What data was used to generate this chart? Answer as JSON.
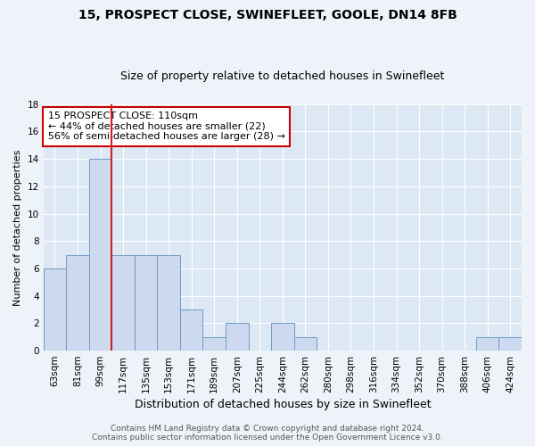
{
  "title": "15, PROSPECT CLOSE, SWINEFLEET, GOOLE, DN14 8FB",
  "subtitle": "Size of property relative to detached houses in Swinefleet",
  "xlabel": "Distribution of detached houses by size in Swinefleet",
  "ylabel": "Number of detached properties",
  "categories": [
    "63sqm",
    "81sqm",
    "99sqm",
    "117sqm",
    "135sqm",
    "153sqm",
    "171sqm",
    "189sqm",
    "207sqm",
    "225sqm",
    "244sqm",
    "262sqm",
    "280sqm",
    "298sqm",
    "316sqm",
    "334sqm",
    "352sqm",
    "370sqm",
    "388sqm",
    "406sqm",
    "424sqm"
  ],
  "values": [
    6,
    7,
    14,
    7,
    7,
    7,
    3,
    1,
    2,
    0,
    2,
    1,
    0,
    0,
    0,
    0,
    0,
    0,
    0,
    1,
    1
  ],
  "bar_color": "#ccd9ee",
  "bar_edge_color": "#7099c8",
  "vline_color": "#cc2222",
  "annotation_text": "15 PROSPECT CLOSE: 110sqm\n← 44% of detached houses are smaller (22)\n56% of semi-detached houses are larger (28) →",
  "annotation_box_color": "#ffffff",
  "annotation_box_edge": "#cc0000",
  "ylim": [
    0,
    18
  ],
  "yticks": [
    0,
    2,
    4,
    6,
    8,
    10,
    12,
    14,
    16,
    18
  ],
  "plot_bg": "#dde8f5",
  "fig_bg": "#eef3fa",
  "grid_color": "#ffffff",
  "footer_line1": "Contains HM Land Registry data © Crown copyright and database right 2024.",
  "footer_line2": "Contains public sector information licensed under the Open Government Licence v3.0.",
  "title_fontsize": 10,
  "subtitle_fontsize": 9,
  "xlabel_fontsize": 9,
  "ylabel_fontsize": 8,
  "tick_fontsize": 7.5,
  "annotation_fontsize": 8,
  "footer_fontsize": 6.5
}
